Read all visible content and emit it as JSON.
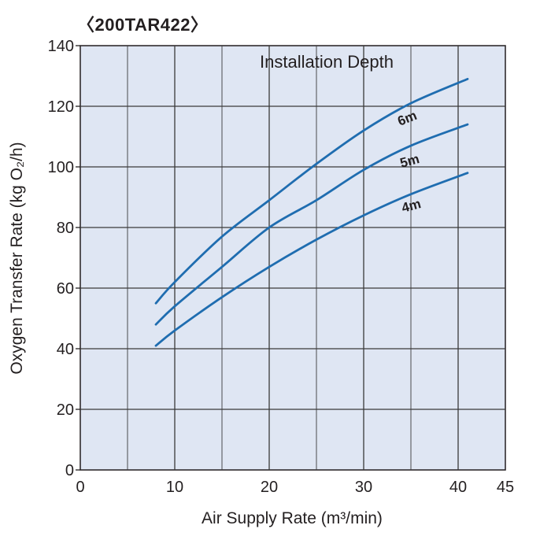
{
  "chart_data": {
    "type": "line",
    "title": "〈200TAR422〉",
    "xlabel": "Air Supply Rate  (m³/min)",
    "ylabel": "Oxygen Transfer Rate (kg O₂/h)",
    "xlim": [
      0,
      45
    ],
    "ylim": [
      0,
      140
    ],
    "x_ticks": [
      0,
      10,
      20,
      30,
      40,
      45
    ],
    "y_ticks": [
      0,
      20,
      40,
      60,
      80,
      100,
      120,
      140
    ],
    "x_grid_step": 5,
    "y_grid_step": 20,
    "grid": true,
    "legend_title": "Installation Depth",
    "x": [
      8,
      10,
      15,
      20,
      25,
      30,
      35,
      41
    ],
    "series": [
      {
        "name": "6m",
        "values": [
          55,
          62,
          77,
          89,
          101,
          112,
          121,
          129
        ]
      },
      {
        "name": "5m",
        "values": [
          48,
          54,
          67,
          80,
          89,
          99,
          107,
          114
        ]
      },
      {
        "name": "4m",
        "values": [
          41,
          46,
          57,
          67,
          76,
          84,
          91,
          98
        ]
      }
    ],
    "colors": {
      "line": "#1f6db0",
      "plot_bg": "#dfe6f3",
      "grid": "#3a3a3a"
    }
  }
}
